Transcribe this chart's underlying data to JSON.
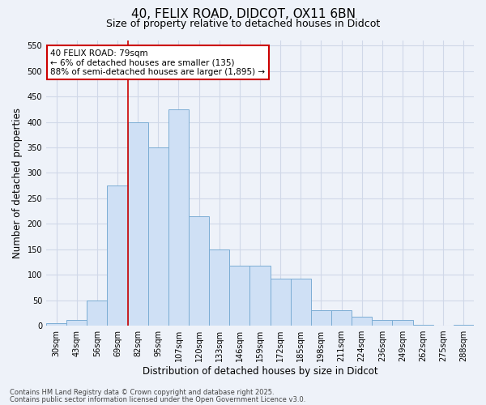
{
  "title1": "40, FELIX ROAD, DIDCOT, OX11 6BN",
  "title2": "Size of property relative to detached houses in Didcot",
  "xlabel": "Distribution of detached houses by size in Didcot",
  "ylabel": "Number of detached properties",
  "categories": [
    "30sqm",
    "43sqm",
    "56sqm",
    "69sqm",
    "82sqm",
    "95sqm",
    "107sqm",
    "120sqm",
    "133sqm",
    "146sqm",
    "159sqm",
    "172sqm",
    "185sqm",
    "198sqm",
    "211sqm",
    "224sqm",
    "236sqm",
    "249sqm",
    "262sqm",
    "275sqm",
    "288sqm"
  ],
  "values": [
    5,
    12,
    50,
    275,
    400,
    350,
    425,
    215,
    150,
    118,
    118,
    92,
    92,
    30,
    30,
    17,
    11,
    11,
    2,
    0,
    2
  ],
  "bar_color": "#cfe0f5",
  "bar_edge_color": "#7badd4",
  "vline_color": "#cc0000",
  "vline_x_index": 4,
  "annotation_line1": "40 FELIX ROAD: 79sqm",
  "annotation_line2": "← 6% of detached houses are smaller (135)",
  "annotation_line3": "88% of semi-detached houses are larger (1,895) →",
  "annotation_edge_color": "#cc0000",
  "ylim": [
    0,
    560
  ],
  "yticks": [
    0,
    50,
    100,
    150,
    200,
    250,
    300,
    350,
    400,
    450,
    500,
    550
  ],
  "footer1": "Contains HM Land Registry data © Crown copyright and database right 2025.",
  "footer2": "Contains public sector information licensed under the Open Government Licence v3.0.",
  "bg_color": "#eef2f9",
  "plot_bg_color": "#eef2f9",
  "grid_color": "#d0d8e8",
  "title_fontsize": 11,
  "subtitle_fontsize": 9,
  "label_fontsize": 8.5,
  "tick_fontsize": 7,
  "annotation_fontsize": 7.5,
  "footer_fontsize": 6
}
